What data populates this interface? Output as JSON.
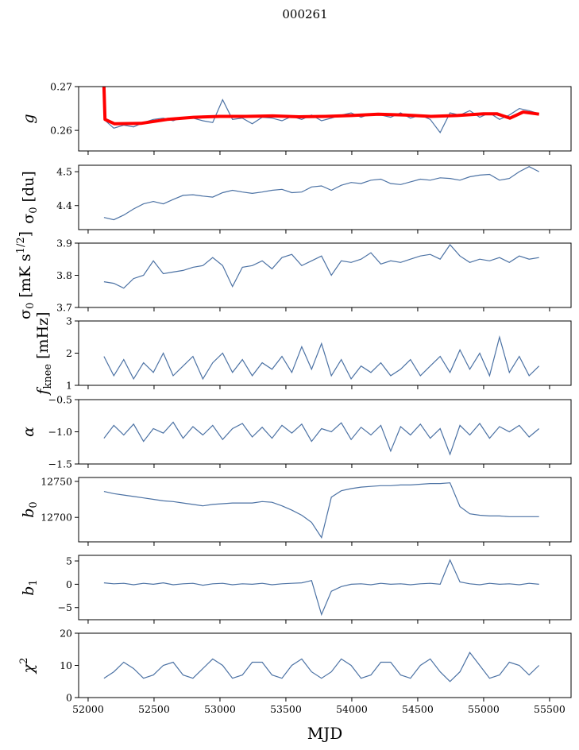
{
  "chart_data": {
    "type": "line",
    "title": "000261",
    "xlabel": "MJD",
    "xlim": [
      51928,
      55663
    ],
    "xticks": [
      52000,
      52500,
      53000,
      53500,
      54000,
      54500,
      55000,
      55500
    ],
    "xticklabels": [
      "52000",
      "52500",
      "53000",
      "53500",
      "54000",
      "54500",
      "55000",
      "55500"
    ],
    "x": [
      52120,
      52195,
      52270,
      52345,
      52420,
      52495,
      52570,
      52645,
      52720,
      52795,
      52870,
      52945,
      53020,
      53095,
      53170,
      53245,
      53320,
      53395,
      53470,
      53545,
      53620,
      53695,
      53770,
      53845,
      53920,
      53995,
      54070,
      54145,
      54220,
      54295,
      54370,
      54445,
      54520,
      54595,
      54670,
      54745,
      54820,
      54895,
      54970,
      55045,
      55120,
      55195,
      55270,
      55345,
      55420
    ],
    "colors": {
      "series": "#4c72a4",
      "fit": "#ff0000"
    },
    "panels": [
      {
        "id": "g",
        "ylabel": {
          "main": "g",
          "sub": "",
          "sup": "",
          "unit": ""
        },
        "italic": true,
        "ylim": [
          0.2553,
          0.27
        ],
        "yticks": [
          0.26,
          0.27
        ],
        "yticklabels": [
          "0.26",
          "0.27"
        ],
        "values": [
          0.2625,
          0.2605,
          0.2612,
          0.2608,
          0.2618,
          0.2625,
          0.2628,
          0.2622,
          0.263,
          0.2628,
          0.2622,
          0.2618,
          0.267,
          0.2625,
          0.2628,
          0.2615,
          0.263,
          0.2628,
          0.2622,
          0.2632,
          0.2625,
          0.2635,
          0.2622,
          0.2628,
          0.2635,
          0.264,
          0.263,
          0.2638,
          0.2635,
          0.263,
          0.264,
          0.2628,
          0.2635,
          0.2625,
          0.2595,
          0.264,
          0.2635,
          0.2645,
          0.263,
          0.264,
          0.2625,
          0.2635,
          0.265,
          0.2645,
          0.2638
        ],
        "fit": {
          "x": [
            52120,
            52128,
            52200,
            52400,
            52600,
            52800,
            53000,
            53200,
            53400,
            53600,
            53800,
            54000,
            54200,
            54400,
            54600,
            54800,
            55000,
            55100,
            55200,
            55300,
            55420
          ],
          "values": [
            0.27,
            0.2625,
            0.2615,
            0.2616,
            0.2625,
            0.263,
            0.2632,
            0.2632,
            0.2633,
            0.2631,
            0.2632,
            0.2634,
            0.2637,
            0.2635,
            0.2632,
            0.2634,
            0.2638,
            0.2638,
            0.2628,
            0.2642,
            0.2637
          ]
        }
      },
      {
        "id": "sigma0-du",
        "ylabel": {
          "main": "σ",
          "sub": "0",
          "sup": "",
          "unit": " [du]"
        },
        "italic": false,
        "ylim": [
          4.329,
          4.519
        ],
        "yticks": [
          4.4,
          4.5
        ],
        "yticklabels": [
          "4.4",
          "4.5"
        ],
        "values": [
          4.365,
          4.358,
          4.372,
          4.39,
          4.405,
          4.412,
          4.405,
          4.418,
          4.43,
          4.432,
          4.428,
          4.425,
          4.438,
          4.445,
          4.44,
          4.436,
          4.44,
          4.445,
          4.448,
          4.438,
          4.44,
          4.455,
          4.458,
          4.445,
          4.46,
          4.468,
          4.465,
          4.475,
          4.478,
          4.465,
          4.462,
          4.47,
          4.478,
          4.475,
          4.482,
          4.48,
          4.475,
          4.485,
          4.49,
          4.492,
          4.475,
          4.48,
          4.5,
          4.515,
          4.5
        ]
      },
      {
        "id": "sigma0-mk",
        "ylabel": {
          "main": "σ",
          "sub": "0",
          "sup": "1/2",
          "unit": " [mK s",
          "unit_end": "]"
        },
        "italic": false,
        "ylim": [
          3.7,
          3.9
        ],
        "yticks": [
          3.7,
          3.8,
          3.9
        ],
        "yticklabels": [
          "3.7",
          "3.8",
          "3.9"
        ],
        "values": [
          3.78,
          3.775,
          3.76,
          3.79,
          3.8,
          3.845,
          3.805,
          3.81,
          3.815,
          3.825,
          3.83,
          3.855,
          3.83,
          3.765,
          3.825,
          3.83,
          3.845,
          3.82,
          3.855,
          3.865,
          3.83,
          3.845,
          3.86,
          3.8,
          3.845,
          3.84,
          3.85,
          3.87,
          3.835,
          3.845,
          3.84,
          3.85,
          3.86,
          3.865,
          3.85,
          3.895,
          3.86,
          3.84,
          3.85,
          3.845,
          3.855,
          3.84,
          3.86,
          3.85,
          3.855
        ]
      },
      {
        "id": "fknee",
        "ylabel": {
          "main": "f",
          "sub": "knee",
          "sup": "",
          "unit": " [mHz]"
        },
        "italic": true,
        "ylim": [
          1,
          3
        ],
        "yticks": [
          1,
          2,
          3
        ],
        "yticklabels": [
          "1",
          "2",
          "3"
        ],
        "values": [
          1.9,
          1.3,
          1.8,
          1.2,
          1.7,
          1.4,
          2.0,
          1.3,
          1.6,
          1.9,
          1.2,
          1.7,
          2.0,
          1.4,
          1.8,
          1.3,
          1.7,
          1.5,
          1.9,
          1.4,
          2.2,
          1.5,
          2.3,
          1.3,
          1.8,
          1.2,
          1.6,
          1.4,
          1.7,
          1.3,
          1.5,
          1.8,
          1.3,
          1.6,
          1.9,
          1.4,
          2.1,
          1.5,
          2.0,
          1.3,
          2.5,
          1.4,
          1.9,
          1.3,
          1.6
        ]
      },
      {
        "id": "alpha",
        "ylabel": {
          "main": "α",
          "sub": "",
          "sup": "",
          "unit": ""
        },
        "italic": true,
        "ylim": [
          -1.5,
          -0.5
        ],
        "yticks": [
          -1.5,
          -1.0,
          -0.5
        ],
        "yticklabels": [
          "−1.5",
          "−1.0",
          "−0.5"
        ],
        "values": [
          -1.1,
          -0.9,
          -1.05,
          -0.88,
          -1.15,
          -0.95,
          -1.02,
          -0.85,
          -1.1,
          -0.92,
          -1.05,
          -0.9,
          -1.12,
          -0.95,
          -0.87,
          -1.08,
          -0.93,
          -1.1,
          -0.9,
          -1.02,
          -0.88,
          -1.15,
          -0.95,
          -1.0,
          -0.86,
          -1.12,
          -0.93,
          -1.05,
          -0.9,
          -1.3,
          -0.92,
          -1.05,
          -0.88,
          -1.1,
          -0.95,
          -1.35,
          -0.9,
          -1.05,
          -0.87,
          -1.1,
          -0.92,
          -1.0,
          -0.9,
          -1.08,
          -0.95
        ]
      },
      {
        "id": "b0",
        "ylabel": {
          "main": "b",
          "sub": "0",
          "sup": "",
          "unit": ""
        },
        "italic": true,
        "ylim": [
          12666,
          12755.4
        ],
        "yticks": [
          12700,
          12750
        ],
        "yticklabels": [
          "12700",
          "12750"
        ],
        "values": [
          12736,
          12733,
          12731,
          12729,
          12727,
          12725,
          12723,
          12722,
          12720,
          12718,
          12716,
          12718,
          12719,
          12720,
          12720,
          12720,
          12722,
          12721,
          12716,
          12710,
          12703,
          12693,
          12672,
          12728,
          12737,
          12740,
          12742,
          12743,
          12744,
          12744,
          12745,
          12745,
          12746,
          12747,
          12747,
          12748,
          12715,
          12705,
          12703,
          12702,
          12702,
          12701,
          12701,
          12701,
          12701
        ]
      },
      {
        "id": "b1",
        "ylabel": {
          "main": "b",
          "sub": "1",
          "sup": "",
          "unit": ""
        },
        "italic": true,
        "ylim": [
          -7.6,
          6.2
        ],
        "yticks": [
          -5,
          0,
          5
        ],
        "yticklabels": [
          "−5",
          "0",
          "5"
        ],
        "values": [
          0.3,
          0.1,
          0.2,
          -0.1,
          0.2,
          0.0,
          0.3,
          -0.1,
          0.1,
          0.2,
          -0.2,
          0.1,
          0.2,
          -0.1,
          0.1,
          0.0,
          0.2,
          -0.1,
          0.1,
          0.2,
          0.3,
          0.8,
          -6.5,
          -1.5,
          -0.5,
          0.0,
          0.1,
          -0.1,
          0.2,
          0.0,
          0.1,
          -0.1,
          0.1,
          0.2,
          0.0,
          5.2,
          0.5,
          0.1,
          -0.1,
          0.2,
          0.0,
          0.1,
          -0.1,
          0.2,
          0.0
        ]
      },
      {
        "id": "chi2",
        "ylabel": {
          "main": "χ",
          "sub": "",
          "sup": "2",
          "unit": ""
        },
        "italic": true,
        "ylim": [
          0,
          20
        ],
        "yticks": [
          0,
          10,
          20
        ],
        "yticklabels": [
          "0",
          "10",
          "20"
        ],
        "values": [
          6,
          8,
          11,
          9,
          6,
          7,
          10,
          11,
          7,
          6,
          9,
          12,
          10,
          6,
          7,
          11,
          11,
          7,
          6,
          10,
          12,
          8,
          6,
          8,
          12,
          10,
          6,
          7,
          11,
          11,
          7,
          6,
          10,
          12,
          8,
          5,
          8,
          14,
          10,
          6,
          7,
          11,
          10,
          7,
          10
        ]
      }
    ]
  }
}
